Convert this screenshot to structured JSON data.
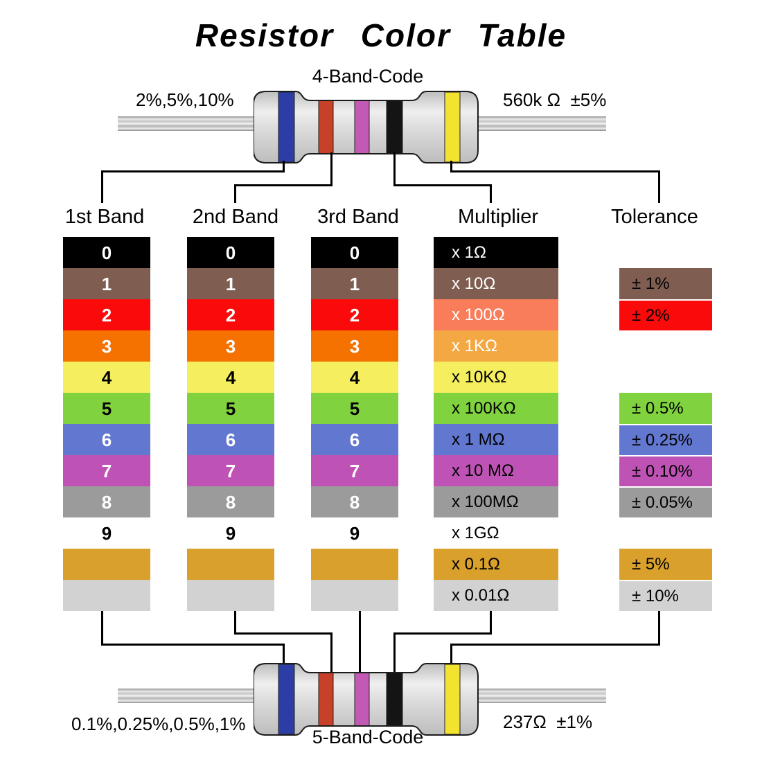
{
  "title": "Resistor Color Table",
  "resistor_top": {
    "code_label": "4-Band-Code",
    "left_label": "2%,5%,10%",
    "right_label": "560k Ω  ±5%",
    "bands": [
      "blue",
      "red",
      "violet",
      "black",
      "yellow"
    ]
  },
  "resistor_bottom": {
    "code_label": "5-Band-Code",
    "left_label": "0.1%,0.25%,0.5%,1%",
    "right_label": "237Ω  ±1%",
    "bands": [
      "blue",
      "red",
      "violet",
      "black",
      "yellow"
    ]
  },
  "band_colors": {
    "blue": "#2c3da6",
    "red": "#c6402a",
    "violet": "#c159b5",
    "black": "#141414",
    "yellow": "#f2e32e"
  },
  "table": {
    "headers": [
      "1st Band",
      "2nd Band",
      "3rd Band",
      "Multiplier",
      "Tolerance"
    ],
    "digit_rows": [
      {
        "label": "0",
        "color_name": "black",
        "bg": "#000000",
        "fg": "#ffffff"
      },
      {
        "label": "1",
        "color_name": "brown",
        "bg": "#7f5d50",
        "fg": "#ffffff"
      },
      {
        "label": "2",
        "color_name": "red",
        "bg": "#fa0a0a",
        "fg": "#ffffff"
      },
      {
        "label": "3",
        "color_name": "orange",
        "bg": "#f57200",
        "fg": "#ffffff"
      },
      {
        "label": "4",
        "color_name": "yellow",
        "bg": "#f5ef5f",
        "fg": "#000000"
      },
      {
        "label": "5",
        "color_name": "green",
        "bg": "#80d33f",
        "fg": "#000000"
      },
      {
        "label": "6",
        "color_name": "blue",
        "bg": "#6277cf",
        "fg": "#ffffff"
      },
      {
        "label": "7",
        "color_name": "violet",
        "bg": "#bf53b5",
        "fg": "#ffffff"
      },
      {
        "label": "8",
        "color_name": "gray",
        "bg": "#9b9b9b",
        "fg": "#ffffff"
      },
      {
        "label": "9",
        "color_name": "white",
        "bg": "#ffffff",
        "fg": "#000000"
      },
      {
        "label": "",
        "color_name": "gold",
        "bg": "#d9a02c",
        "fg": "#000000"
      },
      {
        "label": "",
        "color_name": "silver",
        "bg": "#d2d2d2",
        "fg": "#000000"
      }
    ],
    "multiplier_rows": [
      {
        "label": "x 1Ω",
        "color_name": "black",
        "bg": "#000000",
        "fg": "#ffffff"
      },
      {
        "label": "x 10Ω",
        "color_name": "brown",
        "bg": "#7f5d50",
        "fg": "#ffffff"
      },
      {
        "label": "x 100Ω",
        "color_name": "red",
        "bg": "#f97d5a",
        "fg": "#ffffff"
      },
      {
        "label": "x 1KΩ",
        "color_name": "orange",
        "bg": "#f4a843",
        "fg": "#ffffff"
      },
      {
        "label": "x 10KΩ",
        "color_name": "yellow",
        "bg": "#f5ef5f",
        "fg": "#000000"
      },
      {
        "label": "x 100KΩ",
        "color_name": "green",
        "bg": "#80d33f",
        "fg": "#000000"
      },
      {
        "label": "x 1 MΩ",
        "color_name": "blue",
        "bg": "#6277cf",
        "fg": "#000000"
      },
      {
        "label": "x 10 MΩ",
        "color_name": "violet",
        "bg": "#bf53b5",
        "fg": "#000000"
      },
      {
        "label": "x 100MΩ",
        "color_name": "gray",
        "bg": "#9b9b9b",
        "fg": "#000000"
      },
      {
        "label": "x 1GΩ",
        "color_name": "white",
        "bg": "#ffffff",
        "fg": "#000000"
      },
      {
        "label": "x 0.1Ω",
        "color_name": "gold",
        "bg": "#d9a02c",
        "fg": "#000000"
      },
      {
        "label": "x 0.01Ω",
        "color_name": "silver",
        "bg": "#d2d2d2",
        "fg": "#000000"
      }
    ],
    "tolerance_rows": [
      {
        "label": "± 1%",
        "color_name": "brown",
        "bg": "#7f5d50",
        "fg": "#000000",
        "row": 1
      },
      {
        "label": "± 2%",
        "color_name": "red",
        "bg": "#fa0a0a",
        "fg": "#000000",
        "row": 2
      },
      {
        "label": "± 0.5%",
        "color_name": "green",
        "bg": "#80d33f",
        "fg": "#000000",
        "row": 5
      },
      {
        "label": "± 0.25%",
        "color_name": "blue",
        "bg": "#6277cf",
        "fg": "#000000",
        "row": 6
      },
      {
        "label": "± 0.10%",
        "color_name": "violet",
        "bg": "#bf53b5",
        "fg": "#000000",
        "row": 7
      },
      {
        "label": "± 0.05%",
        "color_name": "gray",
        "bg": "#9b9b9b",
        "fg": "#000000",
        "row": 8
      },
      {
        "label": "± 5%",
        "color_name": "gold",
        "bg": "#d9a02c",
        "fg": "#000000",
        "row": 10
      },
      {
        "label": "± 10%",
        "color_name": "silver",
        "bg": "#d2d2d2",
        "fg": "#000000",
        "row": 11
      }
    ]
  }
}
